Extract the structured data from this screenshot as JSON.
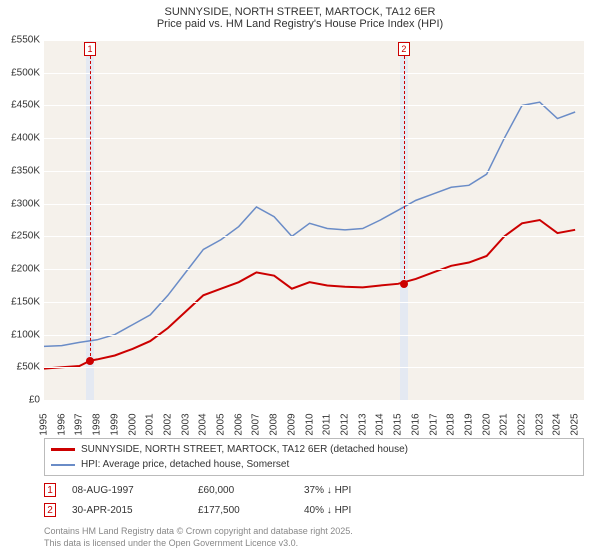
{
  "title": "SUNNYSIDE, NORTH STREET, MARTOCK, TA12 6ER",
  "subtitle": "Price paid vs. HM Land Registry's House Price Index (HPI)",
  "chart": {
    "type": "line",
    "background_color": "#f5f1eb",
    "grid_color": "#ffffff",
    "ylim": [
      0,
      550000
    ],
    "ytick_step": 50000,
    "ylabels": [
      "£0",
      "£50K",
      "£100K",
      "£150K",
      "£200K",
      "£250K",
      "£300K",
      "£350K",
      "£400K",
      "£450K",
      "£500K",
      "£550K"
    ],
    "x_years": [
      1995,
      1996,
      1997,
      1998,
      1999,
      2000,
      2001,
      2002,
      2003,
      2004,
      2005,
      2006,
      2007,
      2008,
      2009,
      2010,
      2011,
      2012,
      2013,
      2014,
      2015,
      2016,
      2017,
      2018,
      2019,
      2020,
      2021,
      2022,
      2023,
      2024,
      2025
    ],
    "xlim": [
      1995,
      2025.5
    ],
    "series": {
      "price_paid": {
        "color": "#cc0000",
        "width": 2,
        "label": "SUNNYSIDE, NORTH STREET, MARTOCK, TA12 6ER (detached house)",
        "points": [
          [
            1995,
            48000
          ],
          [
            1996,
            50000
          ],
          [
            1997,
            52000
          ],
          [
            1997.6,
            60000
          ],
          [
            1998,
            62000
          ],
          [
            1999,
            68000
          ],
          [
            2000,
            78000
          ],
          [
            2001,
            90000
          ],
          [
            2002,
            110000
          ],
          [
            2003,
            135000
          ],
          [
            2004,
            160000
          ],
          [
            2005,
            170000
          ],
          [
            2006,
            180000
          ],
          [
            2007,
            195000
          ],
          [
            2008,
            190000
          ],
          [
            2009,
            170000
          ],
          [
            2010,
            180000
          ],
          [
            2011,
            175000
          ],
          [
            2012,
            173000
          ],
          [
            2013,
            172000
          ],
          [
            2014,
            175000
          ],
          [
            2015,
            177500
          ],
          [
            2016,
            185000
          ],
          [
            2017,
            195000
          ],
          [
            2018,
            205000
          ],
          [
            2019,
            210000
          ],
          [
            2020,
            220000
          ],
          [
            2021,
            250000
          ],
          [
            2022,
            270000
          ],
          [
            2023,
            275000
          ],
          [
            2024,
            255000
          ],
          [
            2025,
            260000
          ]
        ]
      },
      "hpi": {
        "color": "#6a8cc7",
        "width": 1.5,
        "label": "HPI: Average price, detached house, Somerset",
        "points": [
          [
            1995,
            82000
          ],
          [
            1996,
            83000
          ],
          [
            1997,
            88000
          ],
          [
            1998,
            92000
          ],
          [
            1999,
            100000
          ],
          [
            2000,
            115000
          ],
          [
            2001,
            130000
          ],
          [
            2002,
            160000
          ],
          [
            2003,
            195000
          ],
          [
            2004,
            230000
          ],
          [
            2005,
            245000
          ],
          [
            2006,
            265000
          ],
          [
            2007,
            295000
          ],
          [
            2008,
            280000
          ],
          [
            2009,
            250000
          ],
          [
            2010,
            270000
          ],
          [
            2011,
            262000
          ],
          [
            2012,
            260000
          ],
          [
            2013,
            262000
          ],
          [
            2014,
            275000
          ],
          [
            2015,
            290000
          ],
          [
            2016,
            305000
          ],
          [
            2017,
            315000
          ],
          [
            2018,
            325000
          ],
          [
            2019,
            328000
          ],
          [
            2020,
            345000
          ],
          [
            2021,
            400000
          ],
          [
            2022,
            450000
          ],
          [
            2023,
            455000
          ],
          [
            2024,
            430000
          ],
          [
            2025,
            440000
          ]
        ]
      }
    },
    "sale_events": [
      {
        "n": "1",
        "year": 1997.6,
        "price": 60000,
        "date": "08-AUG-1997",
        "price_label": "£60,000",
        "hpi_diff": "37% ↓ HPI"
      },
      {
        "n": "2",
        "year": 2015.33,
        "price": 177500,
        "date": "30-APR-2015",
        "price_label": "£177,500",
        "hpi_diff": "40% ↓ HPI"
      }
    ]
  },
  "attribution_line1": "Contains HM Land Registry data © Crown copyright and database right 2025.",
  "attribution_line2": "This data is licensed under the Open Government Licence v3.0."
}
